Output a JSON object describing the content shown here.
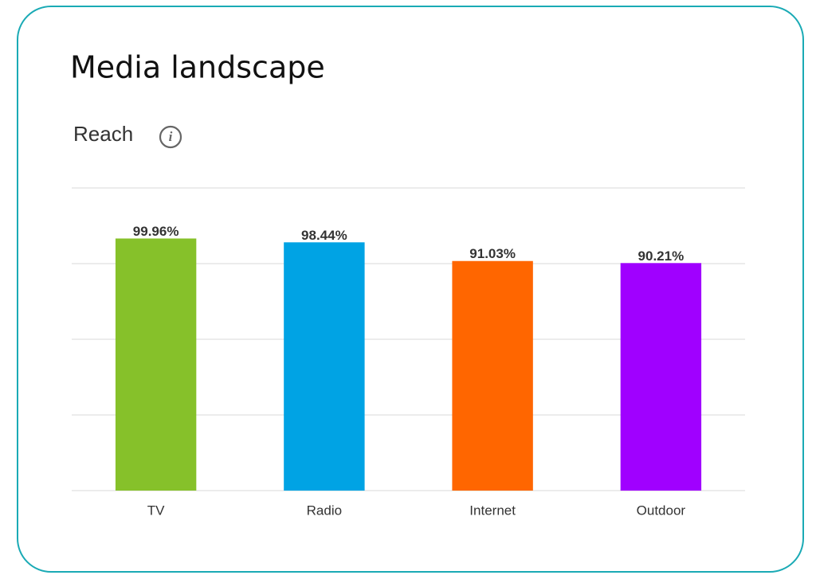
{
  "chart_data": {
    "type": "bar",
    "title": "Media landscape",
    "subtitle": "Reach",
    "categories": [
      "TV",
      "Radio",
      "Internet",
      "Outdoor"
    ],
    "values": [
      99.96,
      98.44,
      91.03,
      90.21
    ],
    "value_labels": [
      "99.96%",
      "98.44%",
      "91.03%",
      "90.21%"
    ],
    "colors": [
      "#86c12a",
      "#00a3e4",
      "#ff6600",
      "#a000ff"
    ],
    "ylim": [
      0,
      120
    ],
    "yticks": [
      0,
      30,
      60,
      90,
      120
    ],
    "grid": true
  }
}
